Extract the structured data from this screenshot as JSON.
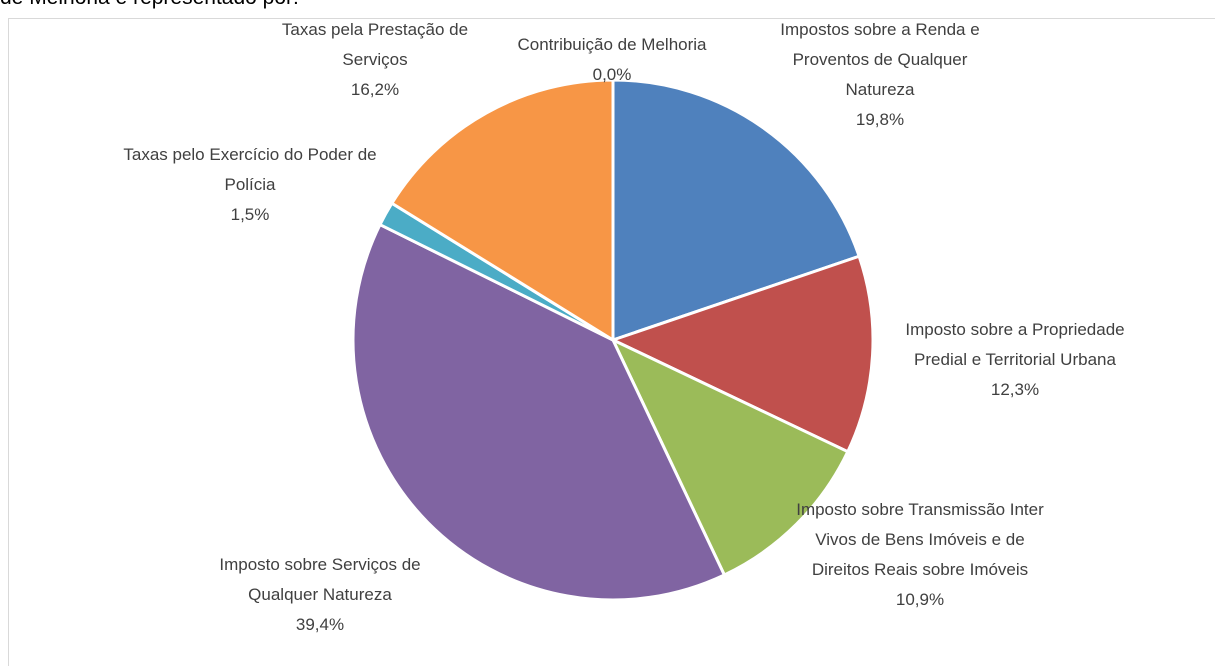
{
  "header_text": "de Melhoria é representado por:",
  "chart_data": {
    "type": "pie",
    "categories": [
      "Impostos sobre a Renda e Proventos de Qualquer Natureza",
      "Imposto sobre a Propriedade Predial e Territorial Urbana",
      "Imposto sobre Transmissão Inter Vivos de Bens Imóveis e de Direitos Reais sobre Imóveis",
      "Imposto sobre Serviços de Qualquer Natureza",
      "Taxas pelo Exercício do Poder de Polícia",
      "Taxas pela Prestação de Serviços",
      "Contribuição de Melhoria"
    ],
    "values": [
      19.8,
      12.3,
      10.9,
      39.4,
      1.5,
      16.2,
      0.0
    ],
    "value_labels": [
      "19,8%",
      "12,3%",
      "10,9%",
      "39,4%",
      "1,5%",
      "16,2%",
      "0,0%"
    ],
    "colors": [
      "#4f81bd",
      "#c0504d",
      "#9bbb59",
      "#8064a2",
      "#4bacc6",
      "#f79646",
      "#2c4d75"
    ]
  }
}
